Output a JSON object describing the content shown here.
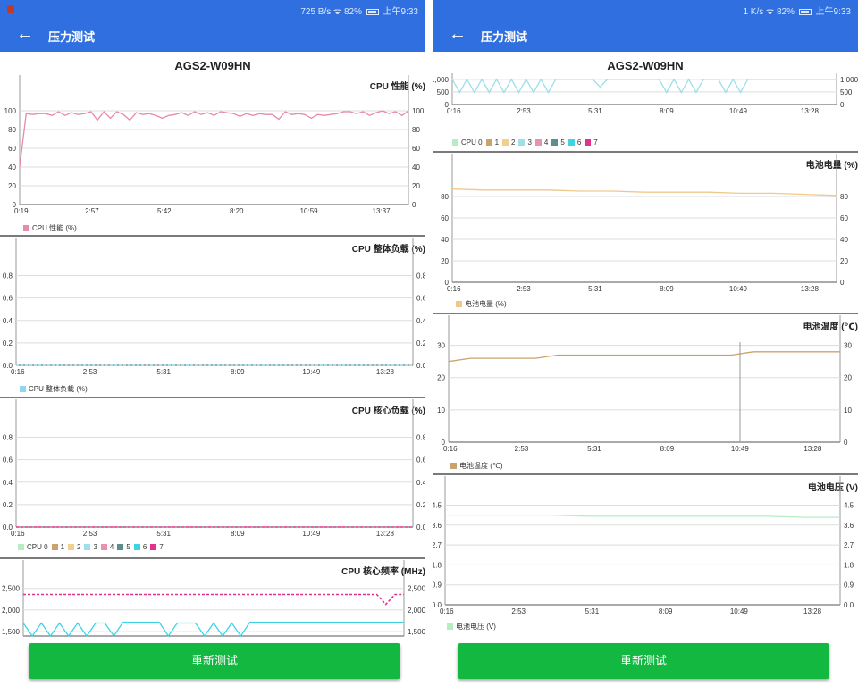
{
  "colors": {
    "brand_blue": "#2f6fe0",
    "button_green": "#12b83f",
    "cores": [
      "#b7ecc4",
      "#c9a36c",
      "#f1cf8c",
      "#9edfe9",
      "#e892b0",
      "#5f8c8c",
      "#3fd3e6",
      "#e0328e"
    ],
    "cpu_perf": "#e88aa8",
    "cpu_load": "#8fd7ec",
    "battery_level": "#f0c98a",
    "battery_temp": "#c9a36c",
    "battery_voltage": "#b7ecc4"
  },
  "left": {
    "status": {
      "speed": "725 B/s",
      "battery": "82%",
      "time": "上午9:33",
      "icons": [
        "notification-icon",
        "wifi-icon",
        "battery-icon"
      ]
    },
    "toolbar": {
      "title": "压力测试",
      "back_icon": "back-arrow-icon"
    },
    "device": "AGS2-W09HN",
    "charts": [
      {
        "chart_data": {
          "type": "line",
          "title": "CPU 性能 (%)",
          "x_ticks": [
            "0:19",
            "2:57",
            "5:42",
            "8:20",
            "10:59",
            "13:37"
          ],
          "y_ticks": [
            "100",
            "80",
            "60",
            "40",
            "20",
            "0"
          ],
          "ylim": [
            0,
            100
          ],
          "legend": [
            "CPU 性能 (%)"
          ],
          "series": [
            {
              "name": "CPU 性能 (%)",
              "color": "#e88aa8",
              "values": [
                40,
                97,
                96,
                97,
                97,
                95,
                99,
                95,
                98,
                96,
                97,
                99,
                90,
                99,
                92,
                99,
                96,
                90,
                98,
                96,
                97,
                95,
                92,
                95,
                96,
                98,
                95,
                99,
                96,
                98,
                95,
                99,
                98,
                97,
                94,
                97,
                95,
                97,
                96,
                96,
                91,
                99,
                96,
                97,
                96,
                92,
                96,
                95,
                96,
                97,
                99,
                99,
                97,
                99,
                95,
                98,
                100,
                97,
                99,
                95,
                100
              ]
            }
          ]
        }
      },
      {
        "chart_data": {
          "type": "line",
          "title": "CPU 整体负载 (%)",
          "x_ticks": [
            "0:16",
            "2:53",
            "5:31",
            "8:09",
            "10:49",
            "13:28"
          ],
          "y_ticks": [
            "0.8",
            "0.6",
            "0.4",
            "0.2",
            "0.0"
          ],
          "ylim": [
            0,
            0.9
          ],
          "legend": [
            "CPU 整体负载 (%)"
          ],
          "series": [
            {
              "name": "CPU 整体负载 (%)",
              "color": "#8fd7ec",
              "values": [
                0,
                0
              ]
            }
          ]
        }
      },
      {
        "chart_data": {
          "type": "line",
          "title": "CPU 核心负载 (%)",
          "x_ticks": [
            "0:16",
            "2:53",
            "5:31",
            "8:09",
            "10:49",
            "13:28"
          ],
          "y_ticks": [
            "0.8",
            "0.6",
            "0.4",
            "0.2",
            "0.0"
          ],
          "ylim": [
            0,
            0.9
          ],
          "legend": [
            "CPU 0",
            "1",
            "2",
            "3",
            "4",
            "5",
            "6",
            "7"
          ],
          "series": [
            {
              "name": "7",
              "color": "#e0328e",
              "values": [
                0,
                0
              ]
            }
          ]
        }
      },
      {
        "chart_data": {
          "type": "line",
          "title": "CPU 核心频率 (MHz)",
          "y_ticks": [
            "2,500",
            "2,000",
            "1,500"
          ],
          "ylim": [
            1400,
            2700
          ],
          "series": [
            {
              "name": "7",
              "color": "#e0328e",
              "values": [
                2360,
                2360,
                2360,
                2360,
                2360,
                2360,
                2360,
                2360,
                2360,
                2360,
                2360,
                2360,
                2360,
                2360,
                2360,
                2360,
                2360,
                2360,
                2360,
                2360,
                2360,
                2360,
                2360,
                2360,
                2360,
                2360,
                2360,
                2360,
                2360,
                2360,
                2360,
                2360,
                2360,
                2360,
                2360,
                2360,
                2360,
                2360,
                2360,
                2360,
                2130,
                2360,
                2360
              ]
            },
            {
              "name": "6",
              "color": "#3fd3e6",
              "values": [
                1700,
                1400,
                1700,
                1400,
                1700,
                1400,
                1700,
                1400,
                1700,
                1700,
                1400,
                1720,
                1720,
                1720,
                1720,
                1720,
                1400,
                1700,
                1700,
                1700,
                1400,
                1700,
                1400,
                1700,
                1400,
                1720,
                1720,
                1720,
                1720,
                1720,
                1720,
                1720,
                1720,
                1720,
                1720,
                1720,
                1720,
                1720,
                1720,
                1720,
                1720,
                1720,
                1720
              ]
            }
          ]
        }
      }
    ],
    "button": "重新测试"
  },
  "right": {
    "status": {
      "speed": "1 K/s",
      "battery": "82%",
      "time": "上午9:33",
      "icons": [
        "wifi-icon",
        "battery-icon"
      ]
    },
    "toolbar": {
      "title": "压力测试",
      "back_icon": "back-arrow-icon"
    },
    "device": "AGS2-W09HN",
    "charts": [
      {
        "chart_data": {
          "type": "line",
          "title": "",
          "x_ticks": [
            "0:16",
            "2:53",
            "5:31",
            "8:09",
            "10:49",
            "13:28"
          ],
          "y_ticks": [
            "1,000",
            "500",
            "0"
          ],
          "ylim": [
            0,
            1100
          ],
          "legend": [
            "CPU 0",
            "1",
            "2",
            "3",
            "4",
            "5",
            "6",
            "7"
          ],
          "series": [
            {
              "name": "3",
              "color": "#9edfe9",
              "values": [
                1000,
                480,
                1000,
                480,
                1000,
                480,
                1000,
                480,
                1000,
                480,
                1000,
                480,
                1000,
                480,
                1000,
                1000,
                1000,
                1000,
                1000,
                1000,
                700,
                1000,
                1000,
                1000,
                1000,
                1000,
                1000,
                1000,
                1000,
                480,
                1000,
                480,
                1000,
                480,
                1000,
                1000,
                1000,
                480,
                1000,
                480,
                1000,
                1000,
                1000,
                1000,
                1000,
                1000,
                1000,
                1000,
                1000,
                1000,
                1000,
                1000,
                1000
              ]
            }
          ]
        }
      },
      {
        "chart_data": {
          "type": "line",
          "title": "电池电量 (%)",
          "x_ticks": [
            "0:16",
            "2:53",
            "5:31",
            "8:09",
            "10:49",
            "13:28"
          ],
          "y_ticks": [
            "80",
            "60",
            "40",
            "20",
            "0"
          ],
          "ylim": [
            0,
            95
          ],
          "legend": [
            "电池电量 (%)"
          ],
          "series": [
            {
              "name": "电池电量 (%)",
              "color": "#f0c98a",
              "values": [
                87,
                86,
                86,
                86,
                85,
                85,
                84,
                84,
                84,
                83,
                83,
                82,
                81
              ]
            }
          ]
        }
      },
      {
        "chart_data": {
          "type": "line",
          "title": "电池温度 (℃)",
          "x_ticks": [
            "0:16",
            "2:53",
            "5:31",
            "8:09",
            "10:49",
            "13:28"
          ],
          "y_ticks": [
            "30",
            "20",
            "10",
            "0"
          ],
          "ylim": [
            0,
            31
          ],
          "legend": [
            "电池温度 (℃)"
          ],
          "series": [
            {
              "name": "电池温度 (℃)",
              "color": "#c9a36c",
              "values": [
                25,
                26,
                26,
                26,
                26,
                27,
                27,
                27,
                27,
                27,
                27,
                27,
                27,
                27,
                28,
                28,
                28,
                28,
                28
              ]
            }
          ]
        }
      },
      {
        "chart_data": {
          "type": "line",
          "title": "电池电压 (V)",
          "x_ticks": [
            "0:16",
            "2:53",
            "5:31",
            "8:09",
            "10:49",
            "13:28"
          ],
          "y_ticks": [
            "4.5",
            "3.6",
            "2.7",
            "1.8",
            "0.9",
            "0.0"
          ],
          "ylim": [
            0,
            4.6
          ],
          "legend": [
            "电池电压 (V)"
          ],
          "series": [
            {
              "name": "电池电压 (V)",
              "color": "#b7ecc4",
              "values": [
                4.05,
                4.05,
                4.05,
                4.05,
                4.0,
                4.0,
                4.0,
                4.0,
                4.0,
                4.0,
                3.95,
                3.95
              ]
            }
          ]
        }
      }
    ],
    "button": "重新测试"
  }
}
